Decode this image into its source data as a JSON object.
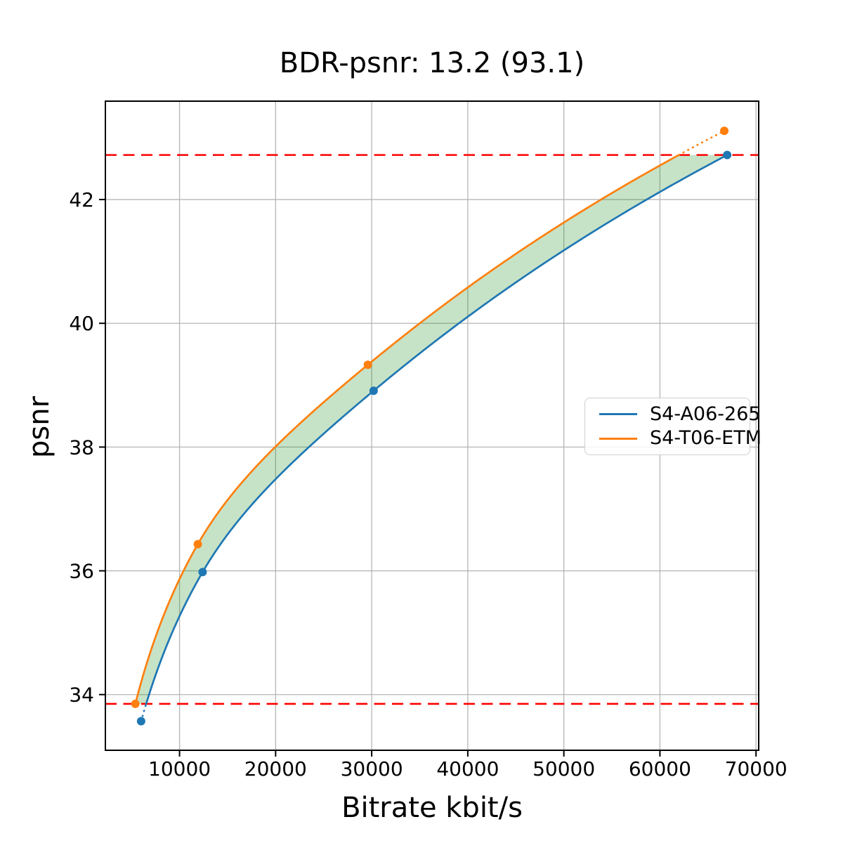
{
  "title": "BDR-psnr: 13.2 (93.1)",
  "xlabel": "Bitrate kbit/s",
  "ylabel": "psnr",
  "chart_data": {
    "type": "line",
    "title": "BDR-psnr: 13.2 (93.1)",
    "xlabel": "Bitrate kbit/s",
    "ylabel": "psnr",
    "xlim": [
      2280,
      70280
    ],
    "ylim": [
      33.1,
      43.59
    ],
    "x_ticks": [
      10000,
      20000,
      30000,
      40000,
      50000,
      60000,
      70000
    ],
    "y_ticks": [
      34,
      36,
      38,
      40,
      42
    ],
    "grid": true,
    "grid_color": "#b6b6b6",
    "interpolation": "pchip-on-log10-bitrate",
    "series": [
      {
        "name": "S4-A06-265",
        "color": "#1f77b4",
        "points": [
          [
            6000,
            33.57
          ],
          [
            12400,
            35.98
          ],
          [
            30200,
            38.91
          ],
          [
            67000,
            42.72
          ]
        ]
      },
      {
        "name": "S4-T06-ETM",
        "color": "#ff7f0e",
        "points": [
          [
            5400,
            33.85
          ],
          [
            11900,
            36.43
          ],
          [
            29600,
            39.33
          ],
          [
            66700,
            43.11
          ]
        ]
      }
    ],
    "overlap_hlines": {
      "color": "#ff0000",
      "style": "dashed",
      "low": 33.85,
      "high": 42.72
    },
    "fill_between_color": "rgba(0, 128, 0, 0.22)",
    "legend_position": "center-right"
  }
}
